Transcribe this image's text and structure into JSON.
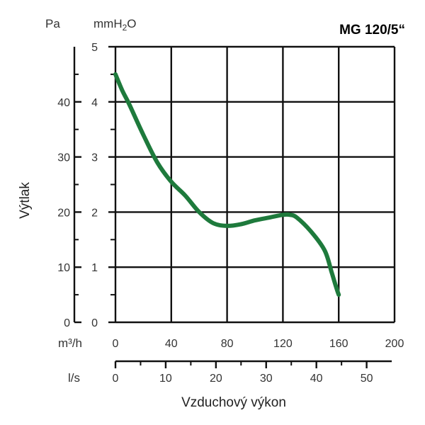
{
  "chart_data": {
    "type": "line",
    "title": "MG 120/5“",
    "ylabel": "Výtlak",
    "xlabel": "Vzduchový výkon",
    "y_units": {
      "left": "Pa",
      "right_prefix": "mmH",
      "right_sub": "2",
      "right_suffix": "O"
    },
    "x_units": {
      "primary": "m³/h",
      "secondary": "l/s"
    },
    "x_primary_ticks": [
      "0",
      "40",
      "80",
      "120",
      "160",
      "200"
    ],
    "x_secondary_ticks": [
      "0",
      "10",
      "20",
      "30",
      "40",
      "50"
    ],
    "y_pa_ticks": [
      "0",
      "10",
      "20",
      "30",
      "40"
    ],
    "y_mm_ticks": [
      "0",
      "1",
      "2",
      "3",
      "4",
      "5"
    ],
    "xlim": [
      0,
      200
    ],
    "ylim": [
      0,
      50
    ],
    "grid": true,
    "series": [
      {
        "color": "#1e7a3c",
        "x": [
          0,
          5,
          10,
          20,
          30,
          40,
          50,
          60,
          70,
          80,
          90,
          100,
          110,
          120,
          125,
          130,
          140,
          150,
          155,
          158,
          160
        ],
        "y": [
          45,
          42,
          39.5,
          34,
          29,
          25.5,
          23,
          20,
          18,
          17.5,
          17.8,
          18.5,
          19,
          19.5,
          19.5,
          19,
          16.5,
          13,
          9,
          6.5,
          5
        ]
      }
    ]
  }
}
